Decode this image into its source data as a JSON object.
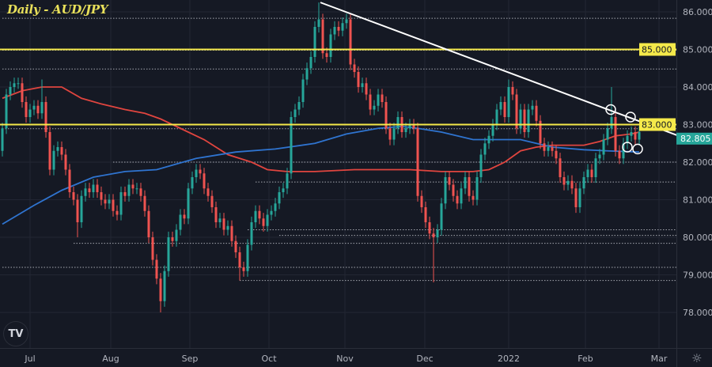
{
  "title": "Daily - AUD/JPY",
  "logo_text": "TV",
  "colors": {
    "background": "#151924",
    "up": "#26a69a",
    "down": "#ef5350",
    "ma_red": "#e0453f",
    "ma_blue": "#2f74d0",
    "level": "#f5e94a",
    "trendline": "#ffffff",
    "last_price": "#26a69a"
  },
  "chart_data": {
    "type": "candlestick",
    "symbol": "AUD/JPY",
    "timeframe": "Daily",
    "ylim": [
      77.7,
      86.3
    ],
    "y_ticks": [
      "86.000",
      "85.000",
      "84.000",
      "83.000",
      "82.000",
      "81.000",
      "80.000",
      "79.000",
      "78.000"
    ],
    "x_ticks": [
      {
        "label": "Jul",
        "at_index": 7
      },
      {
        "label": "Aug",
        "at_index": 27.4
      },
      {
        "label": "Sep",
        "at_index": 47.4
      },
      {
        "label": "Oct",
        "at_index": 67.4
      },
      {
        "label": "Nov",
        "at_index": 86.6
      },
      {
        "label": "Dec",
        "at_index": 106.8
      },
      {
        "label": "2022",
        "at_index": 128
      },
      {
        "label": "Feb",
        "at_index": 147.4
      },
      {
        "label": "Mar",
        "at_index": 166
      }
    ],
    "first_open": 82.3,
    "close": [
      82.9,
      83.8,
      84.0,
      84.1,
      84.1,
      83.6,
      83.2,
      83.4,
      83.5,
      83.3,
      83.6,
      82.8,
      81.8,
      82.3,
      82.4,
      82.2,
      81.8,
      81.2,
      81.0,
      80.4,
      81.1,
      81.3,
      81.2,
      81.4,
      81.2,
      81.0,
      80.9,
      81.0,
      80.7,
      80.6,
      81.2,
      81.1,
      81.4,
      81.3,
      81.3,
      81.1,
      80.7,
      80.0,
      79.4,
      78.9,
      78.3,
      79.1,
      80.0,
      79.9,
      80.2,
      80.6,
      80.5,
      81.3,
      81.6,
      81.8,
      81.7,
      81.3,
      81.1,
      80.8,
      80.4,
      80.5,
      80.2,
      80.3,
      79.9,
      79.6,
      79.2,
      79.1,
      79.8,
      80.4,
      80.7,
      80.5,
      80.3,
      80.6,
      80.7,
      80.9,
      81.2,
      81.3,
      81.7,
      83.2,
      83.4,
      83.6,
      84.2,
      84.5,
      84.8,
      85.6,
      85.8,
      84.9,
      84.8,
      85.4,
      85.6,
      85.5,
      85.7,
      85.8,
      84.6,
      84.4,
      84.0,
      84.1,
      83.8,
      83.4,
      83.5,
      83.8,
      83.6,
      82.9,
      82.6,
      82.9,
      83.2,
      82.8,
      82.9,
      83.0,
      82.9,
      81.1,
      80.8,
      80.4,
      80.1,
      80.0,
      80.2,
      80.9,
      81.6,
      81.4,
      81.1,
      80.9,
      81.3,
      81.6,
      81.1,
      81.0,
      81.6,
      82.2,
      82.5,
      82.7,
      83.0,
      83.4,
      83.6,
      83.2,
      84.0,
      83.8,
      82.9,
      83.4,
      82.8,
      83.4,
      83.5,
      83.1,
      82.5,
      82.3,
      82.4,
      82.3,
      82.1,
      81.6,
      81.4,
      81.5,
      81.3,
      80.8,
      81.3,
      81.6,
      81.8,
      81.6,
      82.1,
      82.2,
      82.6,
      82.9,
      83.2,
      82.3,
      82.1,
      82.5,
      82.7,
      82.8,
      82.6,
      82.805
    ],
    "wick_extremes": [
      {
        "index": 10,
        "high": 84.2
      },
      {
        "index": 19,
        "low": 80.0
      },
      {
        "index": 40,
        "low": 78.0
      },
      {
        "index": 60,
        "low": 78.85
      },
      {
        "index": 80,
        "high": 86.25
      },
      {
        "index": 109,
        "low": 78.8
      },
      {
        "index": 128,
        "high": 84.2
      },
      {
        "index": 154,
        "high": 84.0
      }
    ],
    "series": [
      {
        "color": "#e0453f",
        "points": [
          [
            0,
            83.7
          ],
          [
            5,
            83.9
          ],
          [
            10,
            84.0
          ],
          [
            15,
            84.0
          ],
          [
            20,
            83.7
          ],
          [
            25,
            83.55
          ],
          [
            31,
            83.4
          ],
          [
            36,
            83.3
          ],
          [
            40,
            83.15
          ],
          [
            45,
            82.9
          ],
          [
            51,
            82.6
          ],
          [
            57,
            82.2
          ],
          [
            63,
            82.0
          ],
          [
            67,
            81.8
          ],
          [
            72,
            81.75
          ],
          [
            79,
            81.75
          ],
          [
            89,
            81.8
          ],
          [
            103,
            81.8
          ],
          [
            111,
            81.75
          ],
          [
            119,
            81.75
          ],
          [
            123,
            81.8
          ],
          [
            127,
            82.0
          ],
          [
            131,
            82.3
          ],
          [
            135,
            82.4
          ],
          [
            139,
            82.45
          ],
          [
            147,
            82.45
          ],
          [
            151,
            82.55
          ],
          [
            155,
            82.7
          ],
          [
            159,
            82.75
          ],
          [
            161,
            82.8
          ]
        ]
      },
      {
        "color": "#2f74d0",
        "points": [
          [
            0,
            80.35
          ],
          [
            8,
            80.85
          ],
          [
            15,
            81.25
          ],
          [
            23,
            81.6
          ],
          [
            31,
            81.75
          ],
          [
            39,
            81.8
          ],
          [
            49,
            82.1
          ],
          [
            59,
            82.27
          ],
          [
            69,
            82.35
          ],
          [
            79,
            82.5
          ],
          [
            87,
            82.75
          ],
          [
            95,
            82.9
          ],
          [
            101,
            82.95
          ],
          [
            105,
            82.9
          ],
          [
            111,
            82.8
          ],
          [
            119,
            82.6
          ],
          [
            131,
            82.6
          ],
          [
            139,
            82.4
          ],
          [
            147,
            82.33
          ],
          [
            153,
            82.3
          ],
          [
            161,
            82.27
          ]
        ]
      }
    ],
    "levels": [
      {
        "price": 85.0,
        "label": "85.000",
        "color": "#f5e94a"
      },
      {
        "price": 83.0,
        "label": "83.000",
        "color": "#f5e94a"
      }
    ],
    "dotted_levels": [
      {
        "price": 85.83,
        "from_index": 0
      },
      {
        "price": 84.98,
        "from_index": 0
      },
      {
        "price": 84.48,
        "from_index": 0
      },
      {
        "price": 82.89,
        "from_index": 0
      },
      {
        "price": 82.0,
        "from_index": 28
      },
      {
        "price": 81.47,
        "from_index": 64
      },
      {
        "price": 80.2,
        "from_index": 62
      },
      {
        "price": 80.05,
        "from_index": 70
      },
      {
        "price": 79.84,
        "from_index": 18
      },
      {
        "price": 79.2,
        "from_index": 0
      },
      {
        "price": 78.85,
        "from_index": 60
      }
    ],
    "trendline": {
      "start": {
        "index": 80.4,
        "price": 86.25
      },
      "end": {
        "index": 171,
        "price": 82.7
      }
    },
    "markers": [
      {
        "index": 153.8,
        "price": 83.4
      },
      {
        "index": 158.8,
        "price": 83.2
      },
      {
        "index": 158,
        "price": 82.4
      },
      {
        "index": 160.6,
        "price": 82.35
      }
    ],
    "last_price": {
      "value": 82.805,
      "label": "82.805"
    }
  }
}
